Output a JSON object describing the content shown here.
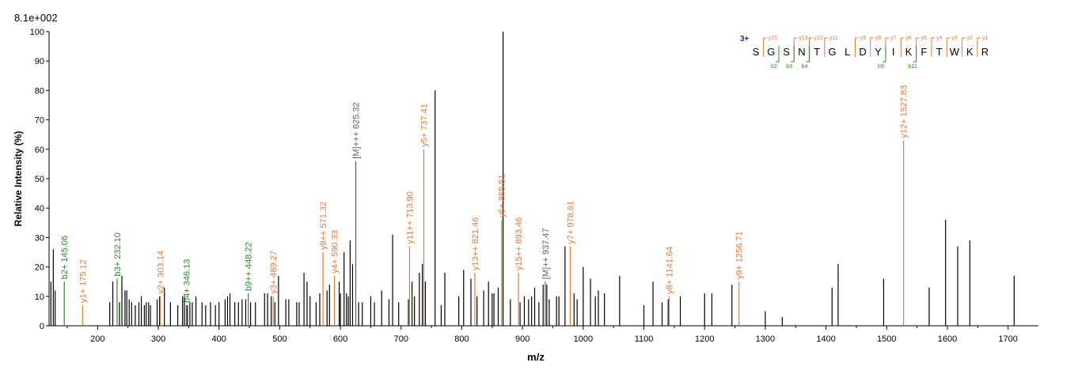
{
  "chart_data": {
    "type": "bar",
    "scale_label": "8.1e+002",
    "xlabel": "m/z",
    "ylabel": "Relative  Intensity (%)",
    "xlim": [
      120,
      1750
    ],
    "ylim": [
      0,
      100
    ],
    "x_ticks": [
      100,
      200,
      300,
      400,
      500,
      600,
      700,
      800,
      900,
      1000,
      1100,
      1200,
      1300,
      1400,
      1500,
      1600,
      1700
    ],
    "y_ticks": [
      0,
      10,
      20,
      30,
      40,
      50,
      60,
      70,
      80,
      90,
      100
    ],
    "colors": {
      "plain": "#000000",
      "y_ion": "#E07A3C",
      "b_ion": "#2A8A2A",
      "precursor": "#606060",
      "seq_blue": "#1A2AA0"
    },
    "annotated_peaks": [
      {
        "label": "b2+ 145.06",
        "x": 145.06,
        "y": 15,
        "ion": "b"
      },
      {
        "label": "y1+ 175.12",
        "x": 175.12,
        "y": 7,
        "ion": "y"
      },
      {
        "label": "b3+ 232.10",
        "x": 232.1,
        "y": 16,
        "ion": "b"
      },
      {
        "label": "y2+ 303.14",
        "x": 303.14,
        "y": 10,
        "ion": "y"
      },
      {
        "label": "b4+ 346.13",
        "x": 346.13,
        "y": 7,
        "ion": "b"
      },
      {
        "label": "b9++ 448.22",
        "x": 448.22,
        "y": 11,
        "ion": "b"
      },
      {
        "label": "y3+ 489.27",
        "x": 489.27,
        "y": 10,
        "ion": "y"
      },
      {
        "label": "y8++ 571.32",
        "x": 571.32,
        "y": 25,
        "ion": "y"
      },
      {
        "label": "y4+ 590.33",
        "x": 590.33,
        "y": 17,
        "ion": "y"
      },
      {
        "label": "[M]+++ 625.32",
        "x": 625.32,
        "y": 56,
        "ion": "m"
      },
      {
        "label": "y11++ 713.90",
        "x": 713.9,
        "y": 27,
        "ion": "y"
      },
      {
        "label": "y5+ 737.41",
        "x": 737.41,
        "y": 60,
        "ion": "y"
      },
      {
        "label": "y13++ 821.46",
        "x": 821.46,
        "y": 18,
        "ion": "y"
      },
      {
        "label": "y6+ 865.51",
        "x": 865.51,
        "y": 36,
        "ion": "y"
      },
      {
        "label": "y15++ 893.46",
        "x": 893.46,
        "y": 18,
        "ion": "y"
      },
      {
        "label": "[M]++ 937.47",
        "x": 937.47,
        "y": 15,
        "ion": "m"
      },
      {
        "label": "y7+ 978.61",
        "x": 978.61,
        "y": 27,
        "ion": "y"
      },
      {
        "label": "y8+ 1141.64",
        "x": 1141.64,
        "y": 10,
        "ion": "y"
      },
      {
        "label": "y9+ 1256.71",
        "x": 1256.71,
        "y": 15,
        "ion": "y"
      },
      {
        "label": "y12+ 1527.83",
        "x": 1527.83,
        "y": 63,
        "ion": "y"
      }
    ],
    "peaks": [
      [
        123,
        15
      ],
      [
        127,
        26
      ],
      [
        130,
        12
      ],
      [
        220,
        8
      ],
      [
        225,
        15
      ],
      [
        236,
        8
      ],
      [
        240,
        17
      ],
      [
        245,
        12
      ],
      [
        248,
        12
      ],
      [
        252,
        9
      ],
      [
        256,
        8
      ],
      [
        262,
        7
      ],
      [
        268,
        8
      ],
      [
        272,
        10
      ],
      [
        277,
        7
      ],
      [
        280,
        8
      ],
      [
        284,
        8
      ],
      [
        287,
        7
      ],
      [
        298,
        9
      ],
      [
        302,
        10
      ],
      [
        310,
        13
      ],
      [
        320,
        8
      ],
      [
        332,
        7
      ],
      [
        340,
        10
      ],
      [
        343,
        10
      ],
      [
        348,
        7
      ],
      [
        352,
        8
      ],
      [
        356,
        8
      ],
      [
        362,
        10
      ],
      [
        372,
        8
      ],
      [
        378,
        7
      ],
      [
        386,
        8
      ],
      [
        394,
        7
      ],
      [
        400,
        8
      ],
      [
        410,
        9
      ],
      [
        414,
        10
      ],
      [
        418,
        11
      ],
      [
        426,
        8
      ],
      [
        432,
        8
      ],
      [
        438,
        9
      ],
      [
        444,
        9
      ],
      [
        452,
        8
      ],
      [
        460,
        8
      ],
      [
        475,
        11
      ],
      [
        480,
        11
      ],
      [
        486,
        10
      ],
      [
        492,
        8
      ],
      [
        498,
        17
      ],
      [
        510,
        9
      ],
      [
        515,
        9
      ],
      [
        528,
        8
      ],
      [
        532,
        8
      ],
      [
        540,
        18
      ],
      [
        545,
        15
      ],
      [
        550,
        10
      ],
      [
        560,
        8
      ],
      [
        566,
        11
      ],
      [
        578,
        12
      ],
      [
        582,
        14
      ],
      [
        598,
        15
      ],
      [
        600,
        11
      ],
      [
        606,
        25
      ],
      [
        610,
        11
      ],
      [
        613,
        10
      ],
      [
        616,
        29
      ],
      [
        620,
        21
      ],
      [
        630,
        8
      ],
      [
        636,
        8
      ],
      [
        650,
        10
      ],
      [
        656,
        8
      ],
      [
        668,
        12
      ],
      [
        680,
        9
      ],
      [
        686,
        31
      ],
      [
        696,
        8
      ],
      [
        712,
        9
      ],
      [
        718,
        15
      ],
      [
        722,
        10
      ],
      [
        730,
        18
      ],
      [
        735,
        21
      ],
      [
        740,
        15
      ],
      [
        756,
        80
      ],
      [
        766,
        7
      ],
      [
        772,
        18
      ],
      [
        795,
        10
      ],
      [
        803,
        19
      ],
      [
        815,
        16
      ],
      [
        825,
        10
      ],
      [
        836,
        12
      ],
      [
        844,
        15
      ],
      [
        850,
        11
      ],
      [
        853,
        11
      ],
      [
        860,
        13
      ],
      [
        868,
        100
      ],
      [
        880,
        9
      ],
      [
        896,
        8
      ],
      [
        903,
        10
      ],
      [
        910,
        9
      ],
      [
        915,
        10
      ],
      [
        920,
        13
      ],
      [
        927,
        8
      ],
      [
        934,
        14
      ],
      [
        940,
        14
      ],
      [
        944,
        9
      ],
      [
        956,
        10
      ],
      [
        960,
        10
      ],
      [
        970,
        27
      ],
      [
        985,
        11
      ],
      [
        990,
        9
      ],
      [
        1000,
        20
      ],
      [
        1012,
        16
      ],
      [
        1020,
        10
      ],
      [
        1025,
        12
      ],
      [
        1035,
        11
      ],
      [
        1060,
        17
      ],
      [
        1100,
        7
      ],
      [
        1115,
        15
      ],
      [
        1130,
        8
      ],
      [
        1140,
        9
      ],
      [
        1160,
        10
      ],
      [
        1200,
        11
      ],
      [
        1212,
        11
      ],
      [
        1245,
        14
      ],
      [
        1300,
        5
      ],
      [
        1328,
        3
      ],
      [
        1410,
        13
      ],
      [
        1420,
        21
      ],
      [
        1495,
        16
      ],
      [
        1570,
        13
      ],
      [
        1597,
        36
      ],
      [
        1617,
        27
      ],
      [
        1637,
        29
      ],
      [
        1710,
        17
      ]
    ],
    "sequence": {
      "charge": "3+",
      "residues": [
        "S",
        "G",
        "S",
        "N",
        "T",
        "G",
        "L",
        "D",
        "Y",
        "I",
        "K",
        "F",
        "T",
        "W",
        "K",
        "R"
      ],
      "y_labels": [
        {
          "text": "y15",
          "after": 1
        },
        {
          "text": "y13",
          "after": 3
        },
        {
          "text": "y12",
          "after": 4
        },
        {
          "text": "y11",
          "after": 5
        },
        {
          "text": "y9",
          "after": 7
        },
        {
          "text": "y8",
          "after": 8
        },
        {
          "text": "y7",
          "after": 9
        },
        {
          "text": "y6",
          "after": 10
        },
        {
          "text": "y5",
          "after": 11
        },
        {
          "text": "y4",
          "after": 12
        },
        {
          "text": "y3",
          "after": 13
        },
        {
          "text": "y2",
          "after": 14
        },
        {
          "text": "y1",
          "after": 15
        }
      ],
      "b_labels": [
        {
          "text": "b2",
          "after": 2
        },
        {
          "text": "b3",
          "after": 3
        },
        {
          "text": "b4",
          "after": 4
        },
        {
          "text": "b9",
          "after": 9
        },
        {
          "text": "b11",
          "after": 11
        }
      ]
    }
  }
}
